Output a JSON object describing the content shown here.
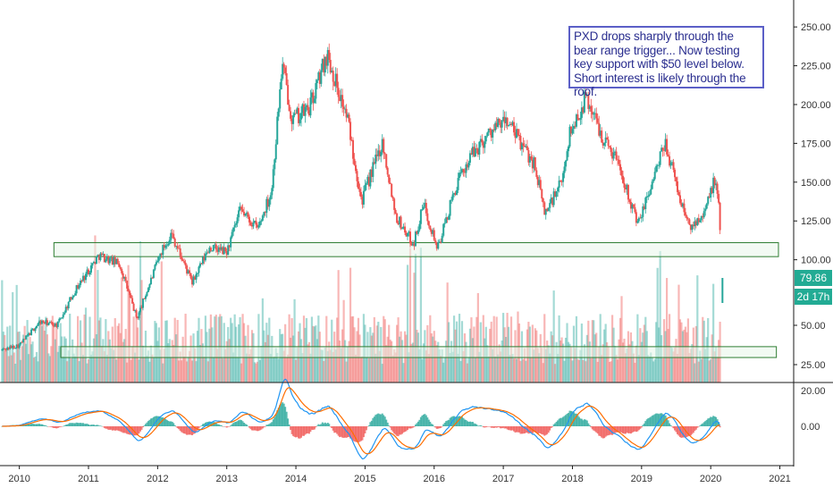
{
  "annotation": "PXD drops sharply through the bear range trigger... Now testing key support with $50 level below. Short interest is likely through the roof.",
  "price_tags": {
    "last_price": "79.86",
    "countdown": "2d 17h"
  },
  "colors": {
    "up": "#26a69a",
    "down": "#ef5350",
    "macd": "#2196f3",
    "signal": "#ff6d00",
    "zone_border": "#2e7d32",
    "zone_fill": "#e8f5e9",
    "annotation_border": "#5b5fc7",
    "tag_bg": "#22ab94"
  },
  "chart_data": [
    {
      "type": "candlestick",
      "title": "",
      "x_ticks": [
        "2010",
        "2011",
        "2012",
        "2013",
        "2014",
        "2015",
        "2016",
        "2017",
        "2018",
        "2019",
        "2020",
        "2021"
      ],
      "y_ticks": [
        "250.00",
        "225.00",
        "200.00",
        "175.00",
        "150.00",
        "125.00",
        "100.00",
        "50.00",
        "25.00"
      ],
      "ylim": [
        20,
        255
      ],
      "grid": false,
      "price_waypoints": [
        {
          "x": 2009.75,
          "y": 42
        },
        {
          "x": 2010.0,
          "y": 45
        },
        {
          "x": 2010.3,
          "y": 60
        },
        {
          "x": 2010.55,
          "y": 58
        },
        {
          "x": 2010.8,
          "y": 80
        },
        {
          "x": 2011.15,
          "y": 103
        },
        {
          "x": 2011.45,
          "y": 97
        },
        {
          "x": 2011.7,
          "y": 62
        },
        {
          "x": 2012.05,
          "y": 105
        },
        {
          "x": 2012.2,
          "y": 117
        },
        {
          "x": 2012.5,
          "y": 85
        },
        {
          "x": 2012.75,
          "y": 108
        },
        {
          "x": 2013.0,
          "y": 105
        },
        {
          "x": 2013.2,
          "y": 132
        },
        {
          "x": 2013.45,
          "y": 120
        },
        {
          "x": 2013.65,
          "y": 145
        },
        {
          "x": 2013.8,
          "y": 226
        },
        {
          "x": 2013.95,
          "y": 190
        },
        {
          "x": 2014.2,
          "y": 198
        },
        {
          "x": 2014.45,
          "y": 233
        },
        {
          "x": 2014.75,
          "y": 190
        },
        {
          "x": 2014.95,
          "y": 138
        },
        {
          "x": 2015.25,
          "y": 176
        },
        {
          "x": 2015.45,
          "y": 128
        },
        {
          "x": 2015.7,
          "y": 110
        },
        {
          "x": 2015.85,
          "y": 136
        },
        {
          "x": 2016.05,
          "y": 107
        },
        {
          "x": 2016.3,
          "y": 145
        },
        {
          "x": 2016.5,
          "y": 165
        },
        {
          "x": 2016.8,
          "y": 182
        },
        {
          "x": 2017.05,
          "y": 190
        },
        {
          "x": 2017.25,
          "y": 175
        },
        {
          "x": 2017.45,
          "y": 162
        },
        {
          "x": 2017.6,
          "y": 130
        },
        {
          "x": 2017.85,
          "y": 150
        },
        {
          "x": 2017.95,
          "y": 180
        },
        {
          "x": 2018.2,
          "y": 205
        },
        {
          "x": 2018.45,
          "y": 178
        },
        {
          "x": 2018.65,
          "y": 165
        },
        {
          "x": 2018.95,
          "y": 122
        },
        {
          "x": 2019.15,
          "y": 150
        },
        {
          "x": 2019.35,
          "y": 175
        },
        {
          "x": 2019.55,
          "y": 140
        },
        {
          "x": 2019.7,
          "y": 120
        },
        {
          "x": 2019.95,
          "y": 135
        },
        {
          "x": 2020.05,
          "y": 152
        },
        {
          "x": 2020.12,
          "y": 135
        },
        {
          "x": 2020.15,
          "y": 103
        }
      ],
      "support_zones": [
        {
          "x_start": 2010.5,
          "x_end": 2020.98,
          "y_low": 102,
          "y_high": 111
        },
        {
          "x_start": 2010.6,
          "x_end": 2020.95,
          "y_low": 37,
          "y_high": 44
        }
      ],
      "last_candle": {
        "x": 2020.17,
        "y_from": 79.86,
        "y_to": 68
      }
    },
    {
      "type": "bar",
      "title": "volume",
      "ylim": [
        0,
        60
      ],
      "note": "volume histogram overlaid at bottom of price pane"
    },
    {
      "type": "line",
      "title": "",
      "y_ticks": [
        "20.00",
        "0.00"
      ],
      "ylim": [
        -22,
        22
      ],
      "series": [],
      "histogram": true
    }
  ]
}
